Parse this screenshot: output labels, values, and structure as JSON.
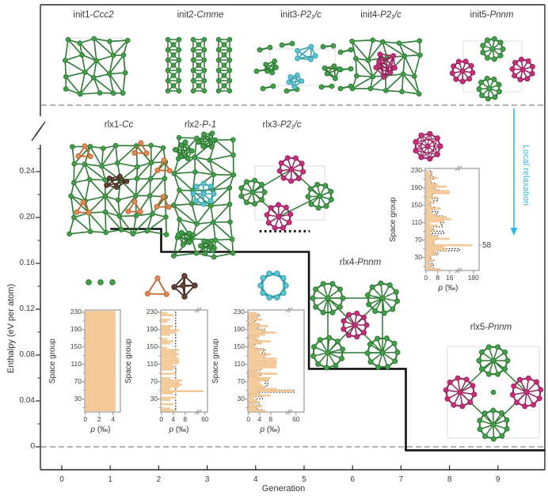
{
  "colors": {
    "green": "#44a04a",
    "green_dark": "#2a7a31",
    "magenta": "#cb2d7d",
    "magenta_dark": "#98215d",
    "cyan": "#5ac6d1",
    "cyan_dark": "#35a0ad",
    "orange": "#e58a55",
    "orange_dark": "#c06330",
    "brown": "#634237",
    "brown_dark": "#442a20",
    "bar": "#f3c998",
    "bar_edge": "#eebd82",
    "arrow": "#2fb8ea",
    "dash": "#9a9a9a",
    "axis": "#262626",
    "step": "#101010",
    "frame": "#999999",
    "cell": "#dddddd"
  },
  "structures": {
    "init": [
      {
        "prefix": "init1-",
        "sg": "Ccc2"
      },
      {
        "prefix": "init2-",
        "sg": "Cmme"
      },
      {
        "prefix": "init3-",
        "sg": "P2₁/c"
      },
      {
        "prefix": "init4-",
        "sg": "P2₁/c"
      },
      {
        "prefix": "init5-",
        "sg": "Pnnm"
      }
    ],
    "rlx": [
      {
        "prefix": "rlx1-",
        "sg": "Cc"
      },
      {
        "prefix": "rlx2-",
        "sg": "P-1"
      },
      {
        "prefix": "rlx3-",
        "sg": "P2₁/c"
      },
      {
        "prefix": "rlx4-",
        "sg": "Pnnm"
      },
      {
        "prefix": "rlx5-",
        "sg": "Pnnm"
      }
    ]
  },
  "axes": {
    "y_label": "Enthalpy (eV per atom)",
    "x_label": "Generation",
    "y_tick_labels": [
      "0.24",
      "0.20",
      "0.16",
      "0.12",
      "0.08",
      "0.04",
      "0"
    ],
    "y_tick_values": [
      0.24,
      0.2,
      0.16,
      0.12,
      0.08,
      0.04,
      0
    ],
    "y_minor_values": [
      0.26,
      0.22,
      0.18,
      0.14,
      0.1,
      0.06,
      0.02
    ],
    "x_tick_labels": [
      "0",
      "1",
      "2",
      "3",
      "4",
      "5",
      "6",
      "7",
      "8",
      "9"
    ],
    "x_tick_values": [
      0,
      1,
      2,
      3,
      4,
      5,
      6,
      7,
      8,
      9
    ]
  },
  "annotations": {
    "local_relaxation": "Local relaxation",
    "sg58": "58"
  },
  "chart_data": {
    "type": "line",
    "title": "",
    "x_label": "Generation",
    "y_label": "Enthalpy (eV per atom)",
    "x_range": [
      -0.45,
      9.95
    ],
    "y_range": [
      0,
      0.26
    ],
    "y_axis_break": true,
    "zero_line_dashed": 0,
    "step_series": {
      "name": "lowest-enthalpy structure per generation",
      "points": [
        [
          1.0,
          0.19
        ],
        [
          2.05,
          0.19
        ],
        [
          2.05,
          0.17
        ],
        [
          5.1,
          0.17
        ],
        [
          5.1,
          0.068
        ],
        [
          7.1,
          0.068
        ],
        [
          7.1,
          -0.003
        ],
        [
          9.97,
          -0.003
        ]
      ]
    },
    "dotted_segment": {
      "points": [
        [
          4.08,
          0.188
        ],
        [
          5.12,
          0.188
        ]
      ]
    },
    "insets": [
      {
        "type": "bar",
        "orientation": "horizontal",
        "ylabel": "Space group",
        "xlabel_p": "p",
        "xlabel_unit": "(‰)",
        "y_ticks": [
          230,
          190,
          150,
          110,
          70,
          30
        ],
        "x_ticks": [
          "0",
          "2",
          "4"
        ],
        "bin_start": 1,
        "bin_size": 5,
        "uniform_value": 4.35,
        "overlay": "none"
      },
      {
        "type": "bar",
        "orientation": "horizontal",
        "ylabel": "Space group",
        "xlabel_p": "p",
        "xlabel_unit": "(‰)",
        "y_ticks": [
          230,
          190,
          150,
          110,
          70,
          30
        ],
        "x_ticks": [
          "0",
          "4",
          "8",
          "60"
        ],
        "x_break_after": "8",
        "bin_start": 1,
        "bin_size": 5,
        "values": [
          5,
          3,
          0,
          4,
          0,
          3,
          5,
          0,
          4,
          55,
          3,
          6,
          7,
          6,
          7,
          3,
          0,
          5,
          0,
          4,
          5,
          4,
          6,
          6,
          6,
          5,
          6,
          5,
          6,
          2,
          0,
          3,
          4,
          2,
          0,
          3,
          5,
          6,
          3,
          4,
          0,
          2,
          3,
          0,
          4,
          2
        ],
        "overlay": "uniform"
      },
      {
        "type": "bar",
        "orientation": "horizontal",
        "ylabel": "Space group",
        "xlabel_p": "p",
        "xlabel_unit": "(‰)",
        "y_ticks": [
          230,
          190,
          150,
          110,
          70,
          30
        ],
        "x_ticks": [
          "0",
          "4",
          "8",
          "60"
        ],
        "x_break_after": "8",
        "bin_start": 1,
        "bin_size": 5,
        "values": [
          6,
          3,
          5,
          2,
          4,
          3,
          2,
          8,
          4,
          55,
          12,
          6,
          5,
          4,
          7,
          8,
          4,
          12,
          3,
          5,
          11,
          10,
          12,
          12,
          11,
          6,
          8,
          4,
          6,
          3,
          2,
          5,
          8,
          3,
          4,
          6,
          10,
          6,
          3,
          7,
          4,
          2,
          5,
          3,
          4,
          3
        ],
        "overlay": "prev"
      },
      {
        "type": "bar",
        "orientation": "horizontal",
        "ylabel": "Space group",
        "xlabel_p": "p",
        "xlabel_unit": "(‰)",
        "y_ticks": [
          230,
          190,
          150,
          110,
          70,
          30
        ],
        "x_ticks": [
          "0",
          "8",
          "16",
          "180"
        ],
        "x_break_after": "16",
        "bin_start": 1,
        "bin_size": 5,
        "values": [
          10,
          3,
          4,
          2,
          6,
          3,
          4,
          8,
          6,
          14,
          12,
          170,
          5,
          6,
          16,
          8,
          4,
          3,
          6,
          4,
          8,
          3,
          12,
          17,
          14,
          6,
          4,
          3,
          10,
          4,
          2,
          6,
          3,
          8,
          4,
          16,
          16,
          6,
          14,
          8,
          4,
          3,
          8,
          3,
          4,
          2
        ],
        "overlay": "prev",
        "peak_label": "58",
        "peak_sg": 58
      }
    ]
  }
}
